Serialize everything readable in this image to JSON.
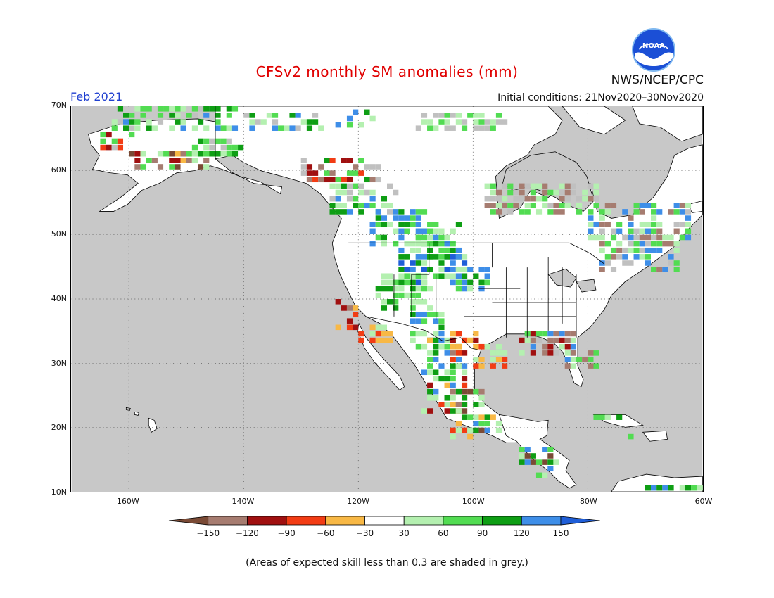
{
  "header": {
    "title": "CFSv2 monthly SM anomalies (mm)",
    "agency": "NWS/NCEP/CPC",
    "logo_text": "NOAA",
    "month": "Feb 2021",
    "initial_conditions": "Initial conditions: 21Nov2020–30Nov2020"
  },
  "map": {
    "lon_range": [
      -170,
      -60
    ],
    "lat_range": [
      10,
      70
    ],
    "lat_ticks": [
      "10N",
      "20N",
      "30N",
      "40N",
      "50N",
      "60N",
      "70N"
    ],
    "lon_ticks": [
      "160W",
      "140W",
      "120W",
      "100W",
      "80W",
      "60W"
    ],
    "ocean_color": "#c8c8c8",
    "land_color": "#ffffff",
    "grid": "dotted"
  },
  "legend": {
    "bins": [
      {
        "color": "#7a4a35"
      },
      {
        "color": "#a67c70"
      },
      {
        "color": "#a01010"
      },
      {
        "color": "#f23c14"
      },
      {
        "color": "#f8b845"
      },
      {
        "color": "#ffffff"
      },
      {
        "color": "#b4f0b0"
      },
      {
        "color": "#52dc52"
      },
      {
        "color": "#0e9e14"
      },
      {
        "color": "#3e8ee8"
      },
      {
        "color": "#1f5ed8"
      }
    ],
    "tick_labels": [
      "−150",
      "−120",
      "−90",
      "−60",
      "−30",
      "30",
      "60",
      "90",
      "120",
      "150"
    ]
  },
  "footnote": "(Areas of expected skill less than 0.3 are shaded in grey.)"
}
